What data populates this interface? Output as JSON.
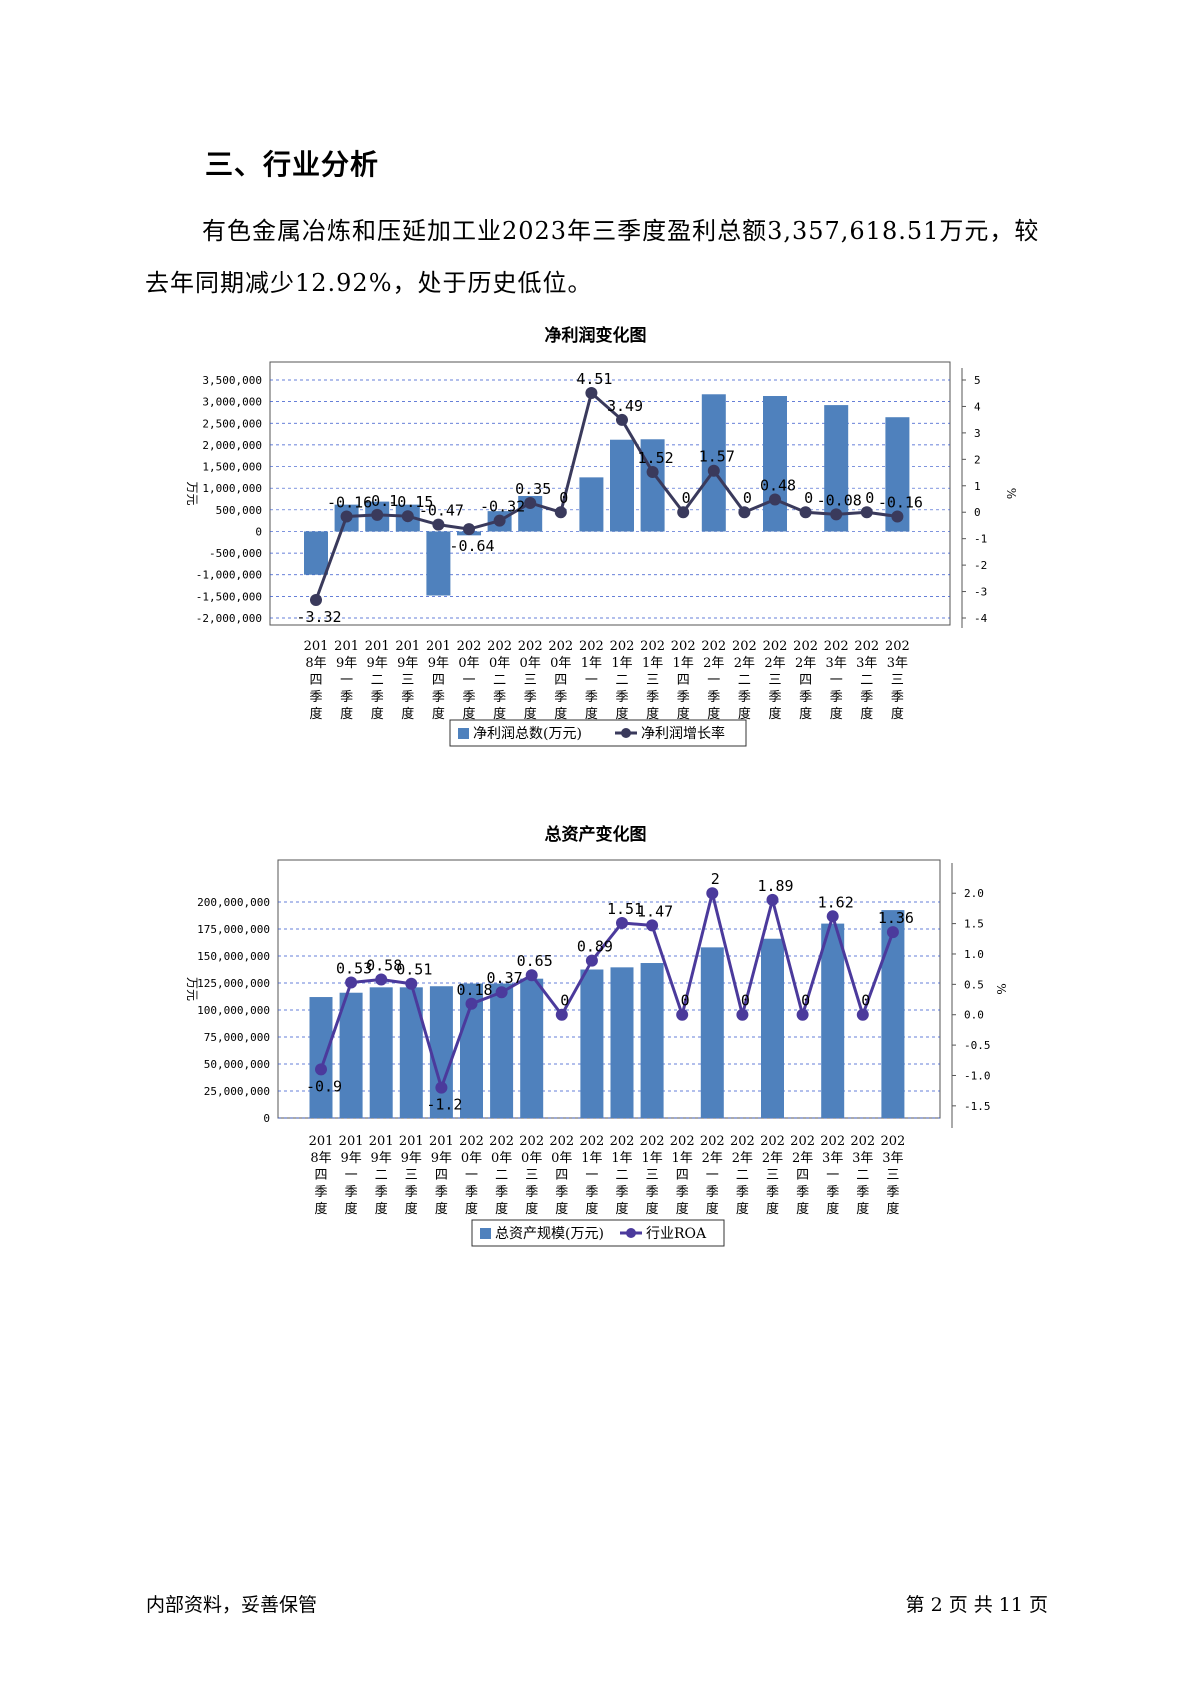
{
  "section": {
    "heading": "三、行业分析",
    "paragraph": "有色金属冶炼和压延加工业2023年三季度盈利总额3,357,618.51万元，较去年同期减少12.92%，处于历史低位。"
  },
  "colors": {
    "bar": "#4f81bd",
    "line1": "#3a3a5c",
    "line2": "#4b3a9c",
    "grid": "#3355cc"
  },
  "categories": [
    [
      "201",
      "8年",
      "四",
      "季",
      "度"
    ],
    [
      "201",
      "9年",
      "一",
      "季",
      "度"
    ],
    [
      "201",
      "9年",
      "二",
      "季",
      "度"
    ],
    [
      "201",
      "9年",
      "三",
      "季",
      "度"
    ],
    [
      "201",
      "9年",
      "四",
      "季",
      "度"
    ],
    [
      "202",
      "0年",
      "一",
      "季",
      "度"
    ],
    [
      "202",
      "0年",
      "二",
      "季",
      "度"
    ],
    [
      "202",
      "0年",
      "三",
      "季",
      "度"
    ],
    [
      "202",
      "0年",
      "四",
      "季",
      "度"
    ],
    [
      "202",
      "1年",
      "一",
      "季",
      "度"
    ],
    [
      "202",
      "1年",
      "二",
      "季",
      "度"
    ],
    [
      "202",
      "1年",
      "三",
      "季",
      "度"
    ],
    [
      "202",
      "1年",
      "四",
      "季",
      "度"
    ],
    [
      "202",
      "2年",
      "一",
      "季",
      "度"
    ],
    [
      "202",
      "2年",
      "二",
      "季",
      "度"
    ],
    [
      "202",
      "2年",
      "三",
      "季",
      "度"
    ],
    [
      "202",
      "2年",
      "四",
      "季",
      "度"
    ],
    [
      "202",
      "3年",
      "一",
      "季",
      "度"
    ],
    [
      "202",
      "3年",
      "二",
      "季",
      "度"
    ],
    [
      "202",
      "3年",
      "三",
      "季",
      "度"
    ]
  ],
  "chart_data": [
    {
      "type": "bar",
      "title": "净利润变化图",
      "ylabel": "万元",
      "y2label": "%",
      "ylim": [
        -2000000,
        3500000
      ],
      "y_ticks": [
        "3,500,000",
        "3,000,000",
        "2,500,000",
        "2,000,000",
        "1,500,000",
        "1,000,000",
        "500,000",
        "0",
        "-500,000",
        "-1,000,000",
        "-1,500,000",
        "-2,000,000"
      ],
      "y2lim": [
        -4,
        5
      ],
      "y2_ticks": [
        "5",
        "4",
        "3",
        "2",
        "1",
        "0",
        "-1",
        "-2",
        "-3",
        "-4"
      ],
      "series": [
        {
          "name": "净利润总数(万元)",
          "type": "bar",
          "axis": "left",
          "values": [
            -1000000,
            620000,
            690000,
            620000,
            -1480000,
            -90000,
            470000,
            820000,
            0,
            1250000,
            2120000,
            2130000,
            0,
            3170000,
            0,
            3130000,
            0,
            2920000,
            0,
            2640000
          ]
        },
        {
          "name": "净利润增长率",
          "type": "line",
          "axis": "right",
          "values": [
            -3.32,
            -0.16,
            -0.1,
            -0.15,
            -0.47,
            -0.64,
            -0.32,
            0.35,
            0,
            4.51,
            3.49,
            1.52,
            0,
            1.57,
            0,
            0.48,
            0,
            -0.08,
            0,
            -0.16
          ],
          "labels": [
            "-3.32",
            "-0.16",
            "-0.1",
            "-0.15",
            "-0.47",
            "-0.64",
            "-0.32",
            "0.35",
            "0",
            "4.51",
            "3.49",
            "1.52",
            "0",
            "1.57",
            "0",
            "0.48",
            "0",
            "-0.08",
            "0",
            "-0.16"
          ]
        }
      ],
      "legend": "bottom"
    },
    {
      "type": "bar",
      "title": "总资产变化图",
      "ylabel": "万元",
      "y2label": "%",
      "ylim": [
        0,
        225000000
      ],
      "y_ticks": [
        "200,000,000",
        "175,000,000",
        "150,000,000",
        "125,000,000",
        "100,000,000",
        "75,000,000",
        "50,000,000",
        "25,000,000",
        "0"
      ],
      "y2lim": [
        -1.7,
        2.3
      ],
      "y2_ticks": [
        "2.0",
        "1.5",
        "1.0",
        "0.5",
        "0.0",
        "-0.5",
        "-1.0",
        "-1.5"
      ],
      "series": [
        {
          "name": "总资产规模(万元)",
          "type": "bar",
          "axis": "left",
          "values": [
            112000000,
            116000000,
            121000000,
            121000000,
            122000000,
            124500000,
            124500000,
            129000000,
            0,
            137500000,
            139500000,
            143500000,
            0,
            158000000,
            0,
            166000000,
            0,
            180000000,
            0,
            192500000
          ]
        },
        {
          "name": "行业ROA",
          "type": "line",
          "axis": "right",
          "values": [
            -0.9,
            0.53,
            0.58,
            0.51,
            -1.2,
            0.18,
            0.37,
            0.65,
            0,
            0.89,
            1.51,
            1.47,
            0,
            2,
            0,
            1.89,
            0,
            1.62,
            0,
            1.36
          ],
          "labels": [
            "-0.9",
            "0.53",
            "0.58",
            "0.51",
            "-1.2",
            "0.18",
            "0.37",
            "0.65",
            "0",
            "0.89",
            "1.51",
            "1.47",
            "0",
            "2",
            "0",
            "1.89",
            "0",
            "1.62",
            "0",
            "1.36"
          ]
        }
      ],
      "legend": "bottom"
    }
  ],
  "footer": {
    "left": "内部资料，妥善保管",
    "right": "第 2 页  共 11 页"
  }
}
